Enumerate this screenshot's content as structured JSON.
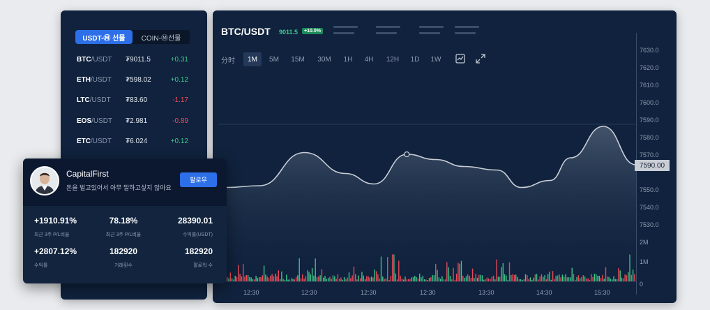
{
  "market": {
    "tabs": [
      {
        "label": "USDT-Ⓜ 선물",
        "active": true
      },
      {
        "label": "COIN-Ⓜ선물",
        "active": false
      }
    ],
    "rows": [
      {
        "base": "BTC",
        "quote": "/USDT",
        "price": "₮9011.5",
        "change": "+0.31",
        "dir": "up"
      },
      {
        "base": "ETH",
        "quote": "/USDT",
        "price": "₮598.02",
        "change": "+0.12",
        "dir": "up"
      },
      {
        "base": "LTC",
        "quote": "/USDT",
        "price": "₮83.60",
        "change": "-1.17",
        "dir": "down"
      },
      {
        "base": "EOS",
        "quote": "/USDT",
        "price": "₮2.981",
        "change": "-0.89",
        "dir": "down"
      },
      {
        "base": "ETC",
        "quote": "/USDT",
        "price": "₮6.024",
        "change": "+0.12",
        "dir": "up"
      }
    ]
  },
  "chart": {
    "symbol": "BTC/USDT",
    "price": "9011.5",
    "change_badge": "+10.0%",
    "timeframes": [
      "分时",
      "1M",
      "5M",
      "15M",
      "30M",
      "1H",
      "4H",
      "12H",
      "1D",
      "1W"
    ],
    "active_timeframe": "1M",
    "icons": [
      "line-chart-icon",
      "fullscreen-icon"
    ],
    "current_price": "7590.00"
  },
  "chart_data": {
    "type": "area",
    "price_axis_ticks": [
      "7630.0",
      "7620.0",
      "7610.0",
      "7600.0",
      "7590.0",
      "7580.0",
      "7570.0",
      "7560.0",
      "7550.0",
      "7540.0",
      "7530.0"
    ],
    "volume_axis_ticks": [
      "2M",
      "1M",
      "0"
    ],
    "x_ticks": [
      "12:30",
      "12:30",
      "12:30",
      "12:30",
      "13:30",
      "14:30",
      "15:30"
    ],
    "ylim": [
      7525,
      7635
    ],
    "price_series": [
      {
        "x": 0,
        "y": 7551
      },
      {
        "x": 0.08,
        "y": 7552
      },
      {
        "x": 0.19,
        "y": 7571
      },
      {
        "x": 0.29,
        "y": 7559
      },
      {
        "x": 0.36,
        "y": 7553
      },
      {
        "x": 0.44,
        "y": 7570
      },
      {
        "x": 0.51,
        "y": 7567
      },
      {
        "x": 0.58,
        "y": 7563
      },
      {
        "x": 0.66,
        "y": 7561
      },
      {
        "x": 0.72,
        "y": 7551
      },
      {
        "x": 0.79,
        "y": 7555
      },
      {
        "x": 0.84,
        "y": 7568
      },
      {
        "x": 0.92,
        "y": 7586
      },
      {
        "x": 1.0,
        "y": 7564
      }
    ],
    "marker_point": {
      "x": 0.44,
      "y": 7570
    },
    "volume_max_units": 2.5,
    "colors": {
      "up": "#3ec98a",
      "down": "#ef4b55",
      "line": "#c9ced6"
    }
  },
  "profile": {
    "name": "CapitalFirst",
    "bio": "돈을 벌고있어서 아무 말하고싶지 않아요",
    "follow_label": "팔로우",
    "stats": [
      {
        "value": "+1910.91%",
        "label": "최근 3주 P/L비율",
        "color": "up"
      },
      {
        "value": "78.18%",
        "label": "최근 3주 P/L비율",
        "color": "white"
      },
      {
        "value": "28390.01",
        "label": "수익률(USDT)",
        "color": "white"
      },
      {
        "value": "+2807.12%",
        "label": "수익률",
        "color": "up"
      },
      {
        "value": "182920",
        "label": "거래횟수",
        "color": "white"
      },
      {
        "value": "182920",
        "label": "팔로워 수",
        "color": "white"
      }
    ]
  }
}
